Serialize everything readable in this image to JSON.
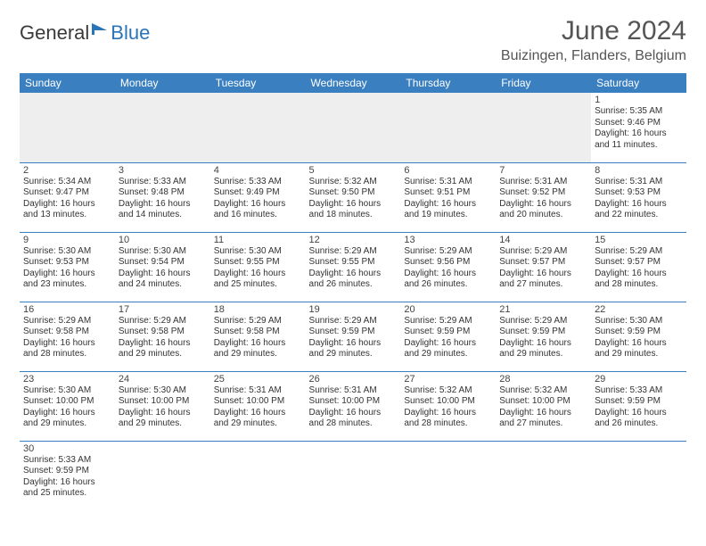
{
  "logo": {
    "part1": "General",
    "part2": "Blue"
  },
  "header": {
    "month_title": "June 2024",
    "location": "Buizingen, Flanders, Belgium"
  },
  "day_headers": [
    "Sunday",
    "Monday",
    "Tuesday",
    "Wednesday",
    "Thursday",
    "Friday",
    "Saturday"
  ],
  "colors": {
    "header_bg": "#3a7fc0",
    "header_text": "#ffffff",
    "border": "#3a7fc0",
    "empty_bg": "#eeeeee",
    "logo_accent": "#2a74b8"
  },
  "weeks": [
    [
      null,
      null,
      null,
      null,
      null,
      null,
      {
        "n": "1",
        "sr": "Sunrise: 5:35 AM",
        "ss": "Sunset: 9:46 PM",
        "dl": "Daylight: 16 hours and 11 minutes."
      }
    ],
    [
      {
        "n": "2",
        "sr": "Sunrise: 5:34 AM",
        "ss": "Sunset: 9:47 PM",
        "dl": "Daylight: 16 hours and 13 minutes."
      },
      {
        "n": "3",
        "sr": "Sunrise: 5:33 AM",
        "ss": "Sunset: 9:48 PM",
        "dl": "Daylight: 16 hours and 14 minutes."
      },
      {
        "n": "4",
        "sr": "Sunrise: 5:33 AM",
        "ss": "Sunset: 9:49 PM",
        "dl": "Daylight: 16 hours and 16 minutes."
      },
      {
        "n": "5",
        "sr": "Sunrise: 5:32 AM",
        "ss": "Sunset: 9:50 PM",
        "dl": "Daylight: 16 hours and 18 minutes."
      },
      {
        "n": "6",
        "sr": "Sunrise: 5:31 AM",
        "ss": "Sunset: 9:51 PM",
        "dl": "Daylight: 16 hours and 19 minutes."
      },
      {
        "n": "7",
        "sr": "Sunrise: 5:31 AM",
        "ss": "Sunset: 9:52 PM",
        "dl": "Daylight: 16 hours and 20 minutes."
      },
      {
        "n": "8",
        "sr": "Sunrise: 5:31 AM",
        "ss": "Sunset: 9:53 PM",
        "dl": "Daylight: 16 hours and 22 minutes."
      }
    ],
    [
      {
        "n": "9",
        "sr": "Sunrise: 5:30 AM",
        "ss": "Sunset: 9:53 PM",
        "dl": "Daylight: 16 hours and 23 minutes."
      },
      {
        "n": "10",
        "sr": "Sunrise: 5:30 AM",
        "ss": "Sunset: 9:54 PM",
        "dl": "Daylight: 16 hours and 24 minutes."
      },
      {
        "n": "11",
        "sr": "Sunrise: 5:30 AM",
        "ss": "Sunset: 9:55 PM",
        "dl": "Daylight: 16 hours and 25 minutes."
      },
      {
        "n": "12",
        "sr": "Sunrise: 5:29 AM",
        "ss": "Sunset: 9:55 PM",
        "dl": "Daylight: 16 hours and 26 minutes."
      },
      {
        "n": "13",
        "sr": "Sunrise: 5:29 AM",
        "ss": "Sunset: 9:56 PM",
        "dl": "Daylight: 16 hours and 26 minutes."
      },
      {
        "n": "14",
        "sr": "Sunrise: 5:29 AM",
        "ss": "Sunset: 9:57 PM",
        "dl": "Daylight: 16 hours and 27 minutes."
      },
      {
        "n": "15",
        "sr": "Sunrise: 5:29 AM",
        "ss": "Sunset: 9:57 PM",
        "dl": "Daylight: 16 hours and 28 minutes."
      }
    ],
    [
      {
        "n": "16",
        "sr": "Sunrise: 5:29 AM",
        "ss": "Sunset: 9:58 PM",
        "dl": "Daylight: 16 hours and 28 minutes."
      },
      {
        "n": "17",
        "sr": "Sunrise: 5:29 AM",
        "ss": "Sunset: 9:58 PM",
        "dl": "Daylight: 16 hours and 29 minutes."
      },
      {
        "n": "18",
        "sr": "Sunrise: 5:29 AM",
        "ss": "Sunset: 9:58 PM",
        "dl": "Daylight: 16 hours and 29 minutes."
      },
      {
        "n": "19",
        "sr": "Sunrise: 5:29 AM",
        "ss": "Sunset: 9:59 PM",
        "dl": "Daylight: 16 hours and 29 minutes."
      },
      {
        "n": "20",
        "sr": "Sunrise: 5:29 AM",
        "ss": "Sunset: 9:59 PM",
        "dl": "Daylight: 16 hours and 29 minutes."
      },
      {
        "n": "21",
        "sr": "Sunrise: 5:29 AM",
        "ss": "Sunset: 9:59 PM",
        "dl": "Daylight: 16 hours and 29 minutes."
      },
      {
        "n": "22",
        "sr": "Sunrise: 5:30 AM",
        "ss": "Sunset: 9:59 PM",
        "dl": "Daylight: 16 hours and 29 minutes."
      }
    ],
    [
      {
        "n": "23",
        "sr": "Sunrise: 5:30 AM",
        "ss": "Sunset: 10:00 PM",
        "dl": "Daylight: 16 hours and 29 minutes."
      },
      {
        "n": "24",
        "sr": "Sunrise: 5:30 AM",
        "ss": "Sunset: 10:00 PM",
        "dl": "Daylight: 16 hours and 29 minutes."
      },
      {
        "n": "25",
        "sr": "Sunrise: 5:31 AM",
        "ss": "Sunset: 10:00 PM",
        "dl": "Daylight: 16 hours and 29 minutes."
      },
      {
        "n": "26",
        "sr": "Sunrise: 5:31 AM",
        "ss": "Sunset: 10:00 PM",
        "dl": "Daylight: 16 hours and 28 minutes."
      },
      {
        "n": "27",
        "sr": "Sunrise: 5:32 AM",
        "ss": "Sunset: 10:00 PM",
        "dl": "Daylight: 16 hours and 28 minutes."
      },
      {
        "n": "28",
        "sr": "Sunrise: 5:32 AM",
        "ss": "Sunset: 10:00 PM",
        "dl": "Daylight: 16 hours and 27 minutes."
      },
      {
        "n": "29",
        "sr": "Sunrise: 5:33 AM",
        "ss": "Sunset: 9:59 PM",
        "dl": "Daylight: 16 hours and 26 minutes."
      }
    ],
    [
      {
        "n": "30",
        "sr": "Sunrise: 5:33 AM",
        "ss": "Sunset: 9:59 PM",
        "dl": "Daylight: 16 hours and 25 minutes."
      },
      null,
      null,
      null,
      null,
      null,
      null
    ]
  ]
}
